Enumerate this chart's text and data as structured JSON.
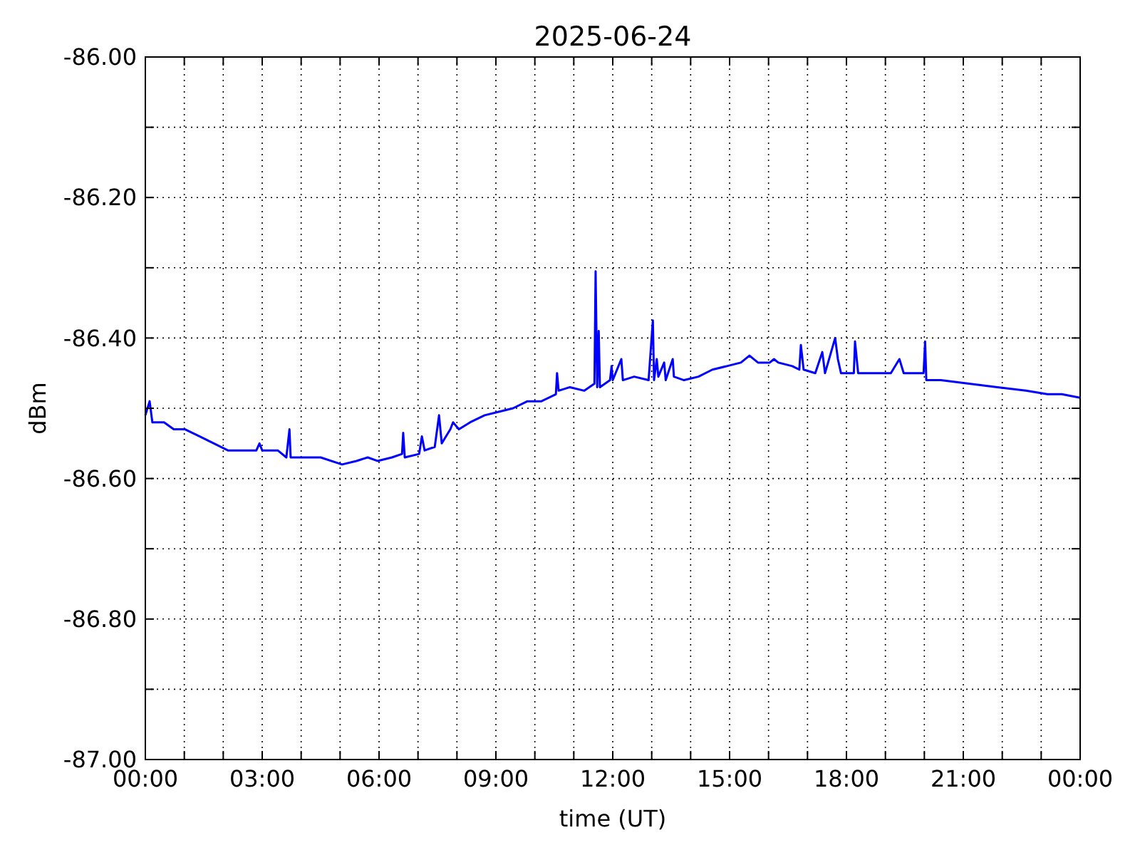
{
  "chart_data": {
    "type": "line",
    "title": "2025-06-24",
    "xlabel": "time (UT)",
    "ylabel": "dBm",
    "xlim": [
      0,
      24
    ],
    "xticks": [
      {
        "value": 0,
        "label": "00:00"
      },
      {
        "value": 1,
        "label": null
      },
      {
        "value": 2,
        "label": null
      },
      {
        "value": 3,
        "label": "03:00"
      },
      {
        "value": 4,
        "label": null
      },
      {
        "value": 5,
        "label": null
      },
      {
        "value": 6,
        "label": "06:00"
      },
      {
        "value": 7,
        "label": null
      },
      {
        "value": 8,
        "label": null
      },
      {
        "value": 9,
        "label": "09:00"
      },
      {
        "value": 10,
        "label": null
      },
      {
        "value": 11,
        "label": null
      },
      {
        "value": 12,
        "label": "12:00"
      },
      {
        "value": 13,
        "label": null
      },
      {
        "value": 14,
        "label": null
      },
      {
        "value": 15,
        "label": "15:00"
      },
      {
        "value": 16,
        "label": null
      },
      {
        "value": 17,
        "label": null
      },
      {
        "value": 18,
        "label": "18:00"
      },
      {
        "value": 19,
        "label": null
      },
      {
        "value": 20,
        "label": null
      },
      {
        "value": 21,
        "label": "21:00"
      },
      {
        "value": 22,
        "label": null
      },
      {
        "value": 23,
        "label": null
      },
      {
        "value": 24,
        "label": "00:00"
      }
    ],
    "ylim": [
      -87,
      -86
    ],
    "yticks": [
      {
        "value": -87,
        "label": "-87.00"
      },
      {
        "value": -86.9,
        "label": null
      },
      {
        "value": -86.8,
        "label": "-86.80"
      },
      {
        "value": -86.7,
        "label": null
      },
      {
        "value": -86.6,
        "label": "-86.60"
      },
      {
        "value": -86.5,
        "label": null
      },
      {
        "value": -86.4,
        "label": "-86.40"
      },
      {
        "value": -86.3,
        "label": null
      },
      {
        "value": -86.2,
        "label": "-86.20"
      },
      {
        "value": -86.1,
        "label": null
      },
      {
        "value": -86,
        "label": "-86.00"
      }
    ],
    "grid": true,
    "marker": "none",
    "line_style": "solid",
    "series": [
      {
        "color": "#0000ff",
        "x": [
          0,
          0.11,
          0.18,
          0.48,
          0.73,
          1.02,
          1.39,
          1.76,
          2.12,
          2.49,
          2.85,
          2.93,
          3.0,
          3.4,
          3.62,
          3.7,
          3.73,
          4.13,
          4.5,
          5.05,
          5.42,
          5.71,
          5.96,
          6.33,
          6.59,
          6.62,
          6.66,
          7.03,
          7.1,
          7.17,
          7.43,
          7.54,
          7.61,
          7.83,
          7.9,
          8.05,
          8.34,
          8.71,
          9.07,
          9.44,
          9.81,
          10.17,
          10.54,
          10.57,
          10.61,
          10.9,
          11.27,
          11.53,
          11.56,
          11.6,
          11.64,
          11.67,
          11.93,
          11.97,
          12.0,
          12.22,
          12.26,
          12.55,
          12.92,
          13.03,
          13.06,
          13.13,
          13.17,
          13.32,
          13.36,
          13.54,
          13.57,
          13.83,
          14.2,
          14.56,
          14.93,
          15.29,
          15.51,
          15.73,
          16.03,
          16.14,
          16.25,
          16.61,
          16.79,
          16.83,
          16.9,
          17.2,
          17.38,
          17.45,
          17.71,
          17.78,
          17.86,
          18.19,
          18.22,
          18.3,
          18.77,
          19.14,
          19.36,
          19.47,
          19.69,
          19.98,
          20.02,
          20.05,
          20.42,
          21.15,
          21.88,
          22.61,
          23.16,
          23.53,
          24
        ],
        "values": [
          -86.51,
          -86.49,
          -86.52,
          -86.52,
          -86.53,
          -86.53,
          -86.54,
          -86.55,
          -86.56,
          -86.56,
          -86.56,
          -86.55,
          -86.56,
          -86.56,
          -86.57,
          -86.53,
          -86.57,
          -86.57,
          -86.57,
          -86.58,
          -86.575,
          -86.57,
          -86.575,
          -86.57,
          -86.565,
          -86.535,
          -86.57,
          -86.565,
          -86.54,
          -86.56,
          -86.555,
          -86.51,
          -86.55,
          -86.53,
          -86.52,
          -86.53,
          -86.52,
          -86.51,
          -86.505,
          -86.5,
          -86.49,
          -86.49,
          -86.48,
          -86.45,
          -86.475,
          -86.47,
          -86.475,
          -86.465,
          -86.305,
          -86.47,
          -86.39,
          -86.47,
          -86.46,
          -86.44,
          -86.46,
          -86.43,
          -86.46,
          -86.455,
          -86.46,
          -86.375,
          -86.46,
          -86.43,
          -86.455,
          -86.435,
          -86.46,
          -86.43,
          -86.455,
          -86.46,
          -86.455,
          -86.445,
          -86.44,
          -86.435,
          -86.425,
          -86.435,
          -86.435,
          -86.43,
          -86.435,
          -86.44,
          -86.445,
          -86.41,
          -86.445,
          -86.45,
          -86.42,
          -86.45,
          -86.4,
          -86.43,
          -86.45,
          -86.45,
          -86.405,
          -86.45,
          -86.45,
          -86.45,
          -86.43,
          -86.45,
          -86.45,
          -86.45,
          -86.405,
          -86.46,
          -86.46,
          -86.465,
          -86.47,
          -86.475,
          -86.48,
          -86.48,
          -86.485
        ]
      }
    ]
  }
}
